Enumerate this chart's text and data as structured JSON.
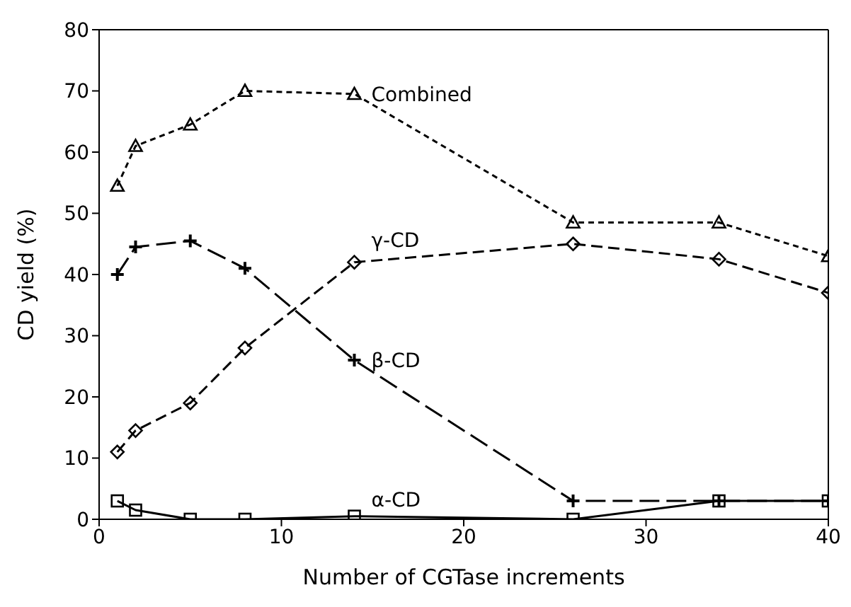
{
  "chart_data": {
    "type": "line",
    "xlabel": "Number of CGTase increments",
    "ylabel": "CD yield (%)",
    "x": [
      1,
      2,
      5,
      8,
      14,
      26,
      34,
      40
    ],
    "xlim": [
      0,
      40
    ],
    "xticks": [
      0,
      10,
      20,
      30,
      40
    ],
    "ylim": [
      0,
      80
    ],
    "yticks": [
      0,
      10,
      20,
      30,
      40,
      50,
      60,
      70,
      80
    ],
    "series": [
      {
        "name": "Combined",
        "color": "#000000",
        "marker": "triangle",
        "line_style": "dashed",
        "values": [
          54.5,
          61,
          64.5,
          70,
          69.5,
          48.5,
          48.5,
          43
        ]
      },
      {
        "name": "γ-CD",
        "color": "#000000",
        "marker": "diamond",
        "line_style": "dashed",
        "values": [
          11,
          14.5,
          19,
          28,
          42,
          45,
          42.5,
          37
        ]
      },
      {
        "name": "β-CD",
        "color": "#000000",
        "marker": "cross",
        "line_style": "dashed",
        "values": [
          40,
          44.5,
          45.5,
          41,
          26,
          3,
          3,
          3
        ]
      },
      {
        "name": "α-CD",
        "color": "#000000",
        "marker": "square",
        "line_style": "solid",
        "values": [
          3,
          1.5,
          0,
          0,
          0.5,
          0,
          3,
          3
        ]
      }
    ]
  }
}
